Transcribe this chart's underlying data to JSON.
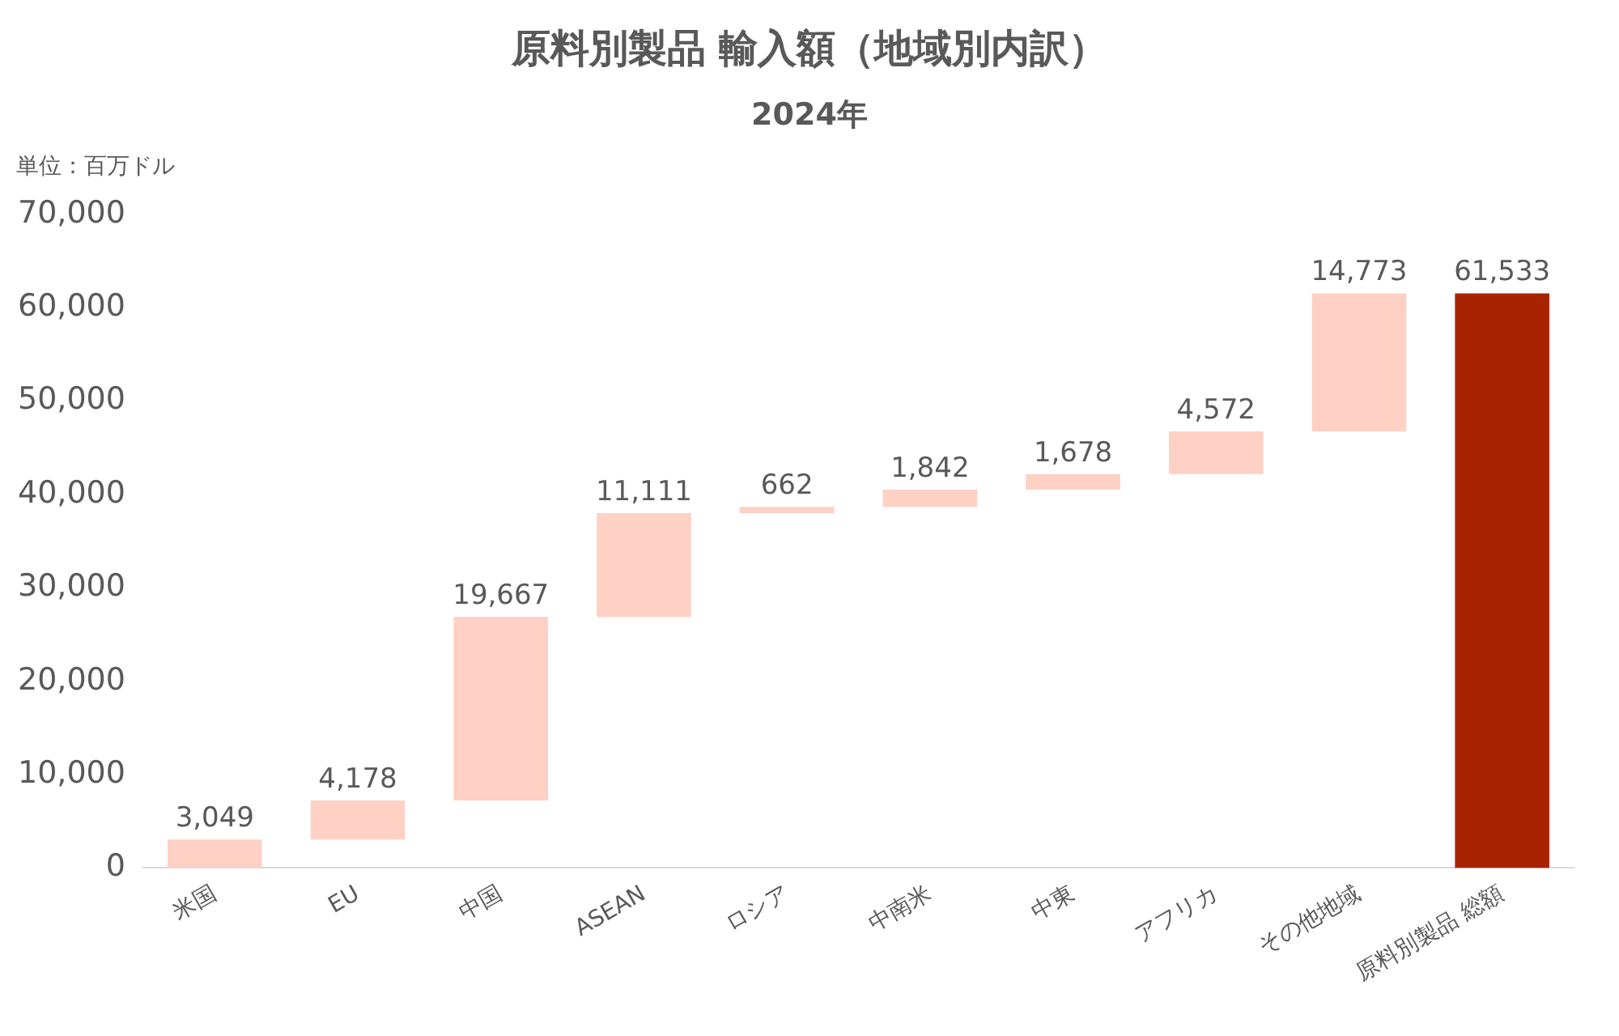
{
  "chart_data": {
    "type": "bar",
    "title": "原料別製品 輸入額（地域別内訳）",
    "subtitle": "2024年",
    "annotations": [
      "単位：百万ドル"
    ],
    "categories": [
      "米国",
      "EU",
      "中国",
      "ASEAN",
      "ロシア",
      "中南米",
      "中東",
      "アフリカ",
      "その他地域",
      "原料別製品 総額"
    ],
    "values": [
      3049,
      4178,
      19667,
      11111,
      662,
      1842,
      1678,
      4572,
      14773,
      61533
    ],
    "value_labels": [
      "3,049",
      "4,178",
      "19,667",
      "11,111",
      "662",
      "1,842",
      "1,678",
      "4,572",
      "14,773",
      "61,533"
    ],
    "base": [
      0,
      3049,
      7227,
      26894,
      38005,
      38667,
      40509,
      42187,
      46759,
      0
    ],
    "colors": [
      "#ffd0c4",
      "#ffd0c4",
      "#ffd0c4",
      "#ffd0c4",
      "#ffd0c4",
      "#ffd0c4",
      "#ffd0c4",
      "#ffd0c4",
      "#ffd0c4",
      "#a82400"
    ],
    "ylim": [
      0,
      70000
    ],
    "yticks": [
      0,
      {
        "value": 10000,
        "label": "10,000"
      },
      {
        "value": 20000,
        "label": "20,000"
      },
      {
        "value": 30000,
        "label": "30,000"
      },
      {
        "value": 40000,
        "label": "40,000"
      },
      {
        "value": 50000,
        "label": "50,000"
      },
      {
        "value": 60000,
        "label": "60,000"
      },
      {
        "value": 70000,
        "label": "70,000"
      }
    ],
    "grid": false,
    "legend": false
  }
}
